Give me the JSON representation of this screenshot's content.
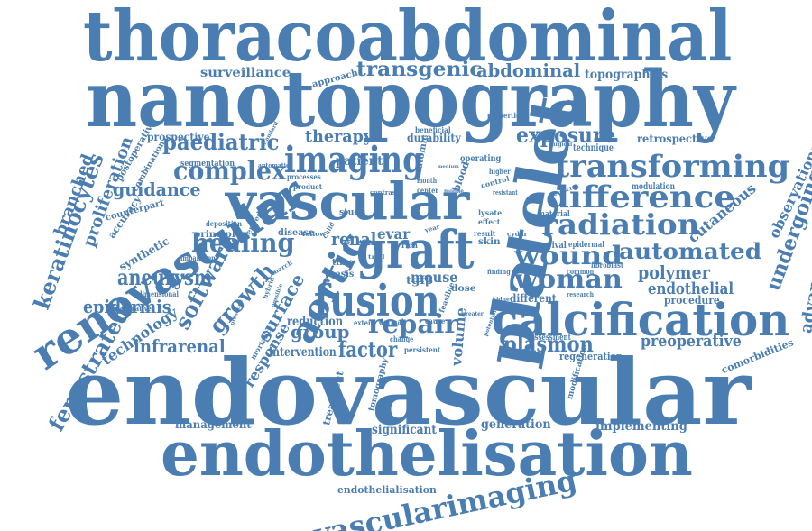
{
  "cloud": {
    "color": "#4a7db1",
    "background": "#ffffff",
    "words": [
      {
        "text": "thoracoabdominal"
      },
      {
        "text": "nanotopography"
      },
      {
        "text": "endovascular"
      },
      {
        "text": "endothelisation"
      },
      {
        "text": "platelet"
      },
      {
        "text": "vascular"
      },
      {
        "text": "calcification"
      },
      {
        "text": "graft"
      },
      {
        "text": "fusion"
      },
      {
        "text": "imaging"
      },
      {
        "text": "renovascular"
      },
      {
        "text": "transforming"
      },
      {
        "text": "difference"
      },
      {
        "text": "radiation"
      },
      {
        "text": "vascularimaging"
      },
      {
        "text": "keratinocytes"
      },
      {
        "text": "aortic"
      },
      {
        "text": "wound"
      },
      {
        "text": "woman"
      },
      {
        "text": "automated"
      },
      {
        "text": "complex"
      },
      {
        "text": "healing"
      },
      {
        "text": "paediatric"
      },
      {
        "text": "repair"
      },
      {
        "text": "plasmon"
      },
      {
        "text": "exposure"
      },
      {
        "text": "transgenic"
      },
      {
        "text": "abdominal"
      },
      {
        "text": "fenestrated"
      },
      {
        "text": "software"
      },
      {
        "text": "growth"
      },
      {
        "text": "aneurysm"
      },
      {
        "text": "guidance"
      },
      {
        "text": "surface"
      },
      {
        "text": "factor"
      },
      {
        "text": "group"
      },
      {
        "text": "epidermis"
      },
      {
        "text": "infrarenal"
      },
      {
        "text": "preoperative"
      },
      {
        "text": "undergoing"
      },
      {
        "text": "polymer"
      },
      {
        "text": "endothelial"
      },
      {
        "text": "branched"
      },
      {
        "text": "proliferation"
      },
      {
        "text": "advanced"
      },
      {
        "text": "therapy"
      },
      {
        "text": "surveillance"
      },
      {
        "text": "topographies"
      },
      {
        "text": "cutaneous"
      },
      {
        "text": "observational"
      },
      {
        "text": "technology"
      },
      {
        "text": "renal"
      },
      {
        "text": "evar"
      },
      {
        "text": "mouse"
      },
      {
        "text": "volume"
      },
      {
        "text": "response"
      },
      {
        "text": "intervention"
      },
      {
        "text": "reduction"
      },
      {
        "text": "significant"
      },
      {
        "text": "generation"
      },
      {
        "text": "implementing"
      },
      {
        "text": "management"
      },
      {
        "text": "endothelialisation"
      },
      {
        "text": "prospective"
      },
      {
        "text": "patient"
      },
      {
        "text": "durability"
      },
      {
        "text": "retrospective"
      },
      {
        "text": "synthetic"
      },
      {
        "text": "principle"
      },
      {
        "text": "disease"
      },
      {
        "text": "procedure"
      },
      {
        "text": "different"
      },
      {
        "text": "regeneration"
      },
      {
        "text": "comorbidities"
      },
      {
        "text": "treatment"
      },
      {
        "text": "tomography"
      },
      {
        "text": "modification"
      },
      {
        "text": "anatomic"
      },
      {
        "text": "blood"
      },
      {
        "text": "operating"
      },
      {
        "text": "tgfβ"
      },
      {
        "text": "dose"
      },
      {
        "text": "skin"
      },
      {
        "text": "thesis"
      },
      {
        "text": "time"
      },
      {
        "text": "study"
      },
      {
        "text": "accuracy"
      },
      {
        "text": "counterpart"
      },
      {
        "text": "segmentation"
      },
      {
        "text": "postoperative"
      },
      {
        "text": "combination"
      },
      {
        "text": "assessment"
      },
      {
        "text": "survival"
      },
      {
        "text": "epidermal"
      },
      {
        "text": "material"
      },
      {
        "text": "modulation"
      },
      {
        "text": "technique"
      },
      {
        "text": "properties"
      },
      {
        "text": "approach"
      },
      {
        "text": "beneficial"
      },
      {
        "text": "deposition"
      },
      {
        "text": "derived"
      },
      {
        "text": "impairment"
      },
      {
        "text": "dimensional"
      },
      {
        "text": "perioperative"
      },
      {
        "text": "mortality"
      },
      {
        "text": "persistent"
      },
      {
        "text": "change"
      },
      {
        "text": "cause"
      },
      {
        "text": "extent"
      },
      {
        "text": "dermal"
      },
      {
        "text": "lysate"
      },
      {
        "text": "effect"
      },
      {
        "text": "result"
      },
      {
        "text": "control"
      },
      {
        "text": "higher"
      },
      {
        "text": "resistant"
      },
      {
        "text": "month"
      },
      {
        "text": "center"
      },
      {
        "text": "processes"
      },
      {
        "text": "product"
      },
      {
        "text": "automatic"
      },
      {
        "text": "standard"
      },
      {
        "text": "contrast"
      },
      {
        "text": "mobile"
      },
      {
        "text": "follow"
      },
      {
        "text": "child"
      },
      {
        "text": "rich"
      },
      {
        "text": "fibroblast"
      },
      {
        "text": "common"
      },
      {
        "text": "research"
      },
      {
        "text": "surgical"
      },
      {
        "text": "respect"
      },
      {
        "text": "cydar"
      },
      {
        "text": "finding"
      },
      {
        "text": "kidney"
      },
      {
        "text": "potential"
      },
      {
        "text": "greater"
      },
      {
        "text": "feasible"
      },
      {
        "text": "hybrid"
      },
      {
        "text": "march"
      },
      {
        "text": "presence"
      },
      {
        "text": "possible"
      },
      {
        "text": "year"
      },
      {
        "text": "trial"
      },
      {
        "text": "medium"
      },
      {
        "text": "image"
      }
    ]
  }
}
